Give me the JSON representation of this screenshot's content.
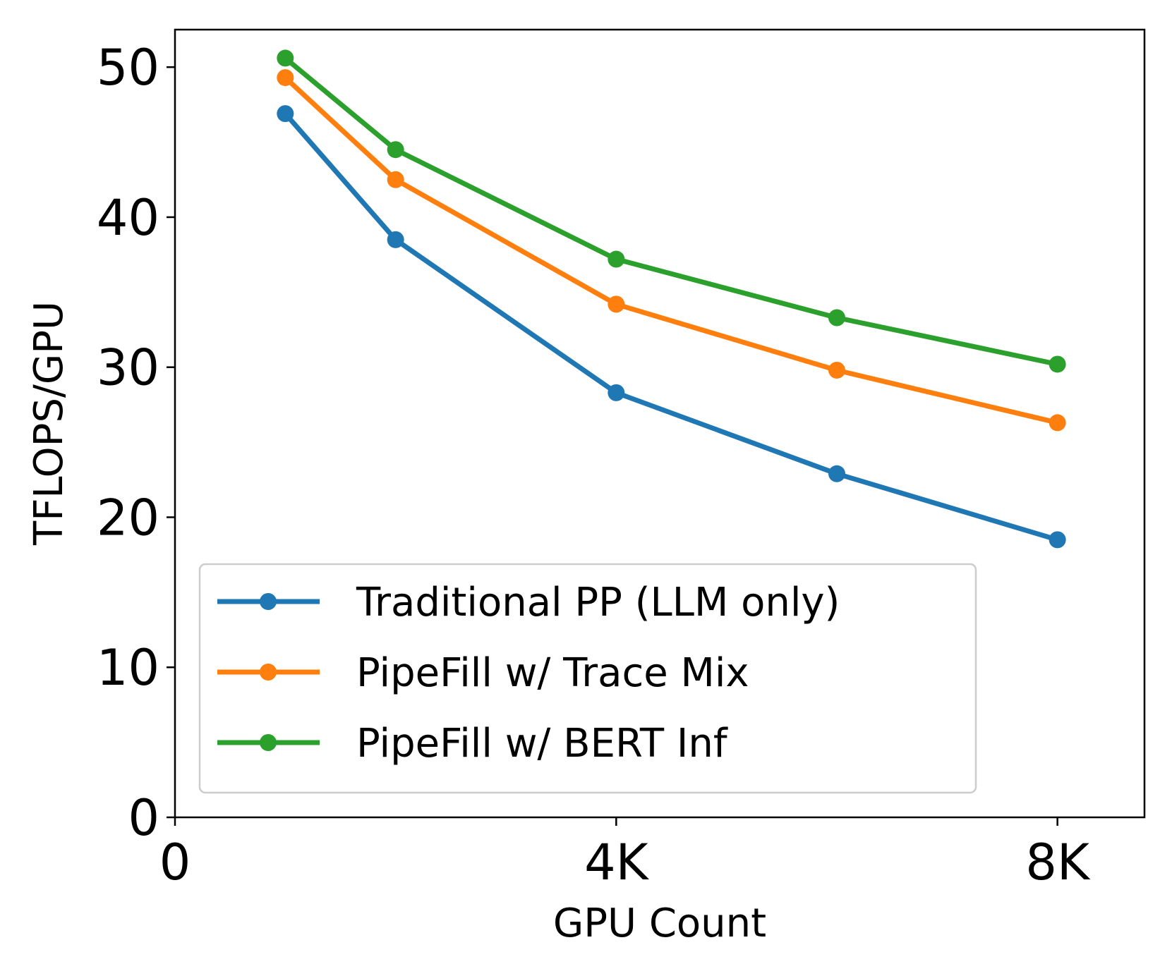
{
  "chart_data": {
    "type": "line",
    "xlabel": "GPU Count",
    "ylabel": "TFLOPS/GPU",
    "xlim": [
      0,
      9000
    ],
    "ylim": [
      0,
      52.5
    ],
    "x_ticks": [
      {
        "value": 0,
        "label": "0"
      },
      {
        "value": 4096,
        "label": "4K"
      },
      {
        "value": 8192,
        "label": "8K"
      }
    ],
    "y_ticks": [
      {
        "value": 0,
        "label": "0"
      },
      {
        "value": 10,
        "label": "10"
      },
      {
        "value": 20,
        "label": "20"
      },
      {
        "value": 30,
        "label": "30"
      },
      {
        "value": 40,
        "label": "40"
      },
      {
        "value": 50,
        "label": "50"
      }
    ],
    "grid": false,
    "legend_position": "lower-left",
    "x": [
      1024,
      2048,
      4096,
      6144,
      8192
    ],
    "series": [
      {
        "name": "Traditional PP (LLM only)",
        "color": "#1f77b4",
        "values": [
          46.9,
          38.5,
          28.3,
          22.9,
          18.5
        ]
      },
      {
        "name": "PipeFill w/ Trace Mix",
        "color": "#ff7f0e",
        "values": [
          49.3,
          42.5,
          34.2,
          29.8,
          26.3
        ]
      },
      {
        "name": "PipeFill w/ BERT Inf",
        "color": "#2ca02c",
        "values": [
          50.6,
          44.5,
          37.2,
          33.3,
          30.2
        ]
      }
    ]
  }
}
